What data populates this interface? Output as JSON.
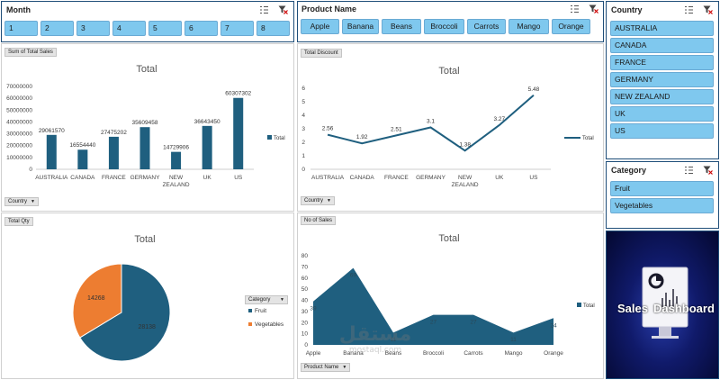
{
  "month_slicer": {
    "title": "Month",
    "items": [
      "1",
      "2",
      "3",
      "4",
      "5",
      "6",
      "7",
      "8"
    ]
  },
  "product_slicer": {
    "title": "Product Name",
    "items": [
      "Apple",
      "Banana",
      "Beans",
      "Broccoli",
      "Carrots",
      "Mango",
      "Orange"
    ]
  },
  "country_slicer": {
    "title": "Country",
    "items": [
      "AUSTRALIA",
      "CANADA",
      "FRANCE",
      "GERMANY",
      "NEW ZEALAND",
      "UK",
      "US"
    ]
  },
  "category_slicer": {
    "title": "Category",
    "items": [
      "Fruit",
      "Vegetables"
    ]
  },
  "sales_chart": {
    "field_label": "Sum of Total Sales",
    "axis_button": "Country",
    "chart_data": {
      "type": "bar",
      "title": "Total",
      "categories": [
        "AUSTRALIA",
        "CANADA",
        "FRANCE",
        "GERMANY",
        "NEW ZEALAND",
        "UK",
        "US"
      ],
      "series": [
        {
          "name": "Total",
          "values": [
            29061570,
            16554440,
            27475202,
            35609458,
            14729906,
            36643450,
            60307302
          ]
        }
      ],
      "data_labels": [
        "29061570",
        "16554440",
        "27475202",
        "35609458",
        "14729906",
        "36643450",
        "60307302"
      ],
      "yticks": [
        "0",
        "10000000",
        "20000000",
        "30000000",
        "40000000",
        "50000000",
        "60000000",
        "70000000"
      ],
      "ylim": [
        0,
        70000000
      ],
      "legend": "right",
      "color": "#1f5f7f"
    }
  },
  "discount_chart": {
    "field_label": "Total Discount",
    "axis_button": "Country",
    "chart_data": {
      "type": "line",
      "title": "Total",
      "categories": [
        "AUSTRALIA",
        "CANADA",
        "FRANCE",
        "GERMANY",
        "NEW ZEALAND",
        "UK",
        "US"
      ],
      "series": [
        {
          "name": "Total",
          "values": [
            2.56,
            1.92,
            2.51,
            3.1,
            1.38,
            3.27,
            5.48
          ]
        }
      ],
      "data_labels": [
        "2.56",
        "1.92",
        "2.51",
        "3.1",
        "1.38",
        "3.27",
        "5.48"
      ],
      "yticks": [
        "0",
        "1",
        "2",
        "3",
        "4",
        "5",
        "6"
      ],
      "ylim": [
        0,
        6
      ],
      "legend": "right",
      "color": "#1f5f7f"
    }
  },
  "qty_chart": {
    "field_label": "Total Qty",
    "legend_button": "Category",
    "chart_data": {
      "type": "pie",
      "title": "Total",
      "categories": [
        "Fruit",
        "Vegetables"
      ],
      "values": [
        28138,
        14268
      ],
      "data_labels": [
        "28138",
        "14268"
      ],
      "colors": [
        "#1f5f7f",
        "#ed7d31"
      ],
      "legend": "right"
    }
  },
  "nsales_chart": {
    "field_label": "No of Sales",
    "axis_button": "Product Name",
    "chart_data": {
      "type": "area",
      "title": "Total",
      "categories": [
        "Apple",
        "Banana",
        "Beans",
        "Broccoli",
        "Carrots",
        "Mango",
        "Orange"
      ],
      "series": [
        {
          "name": "Total",
          "values": [
            39,
            69,
            11,
            27,
            27,
            11,
            24
          ]
        }
      ],
      "data_labels": [
        "39",
        "69",
        "11",
        "27",
        "27",
        "11",
        "24"
      ],
      "yticks": [
        "0",
        "10",
        "20",
        "30",
        "40",
        "50",
        "60",
        "70",
        "80"
      ],
      "ylim": [
        0,
        80
      ],
      "legend": "right",
      "color": "#1f5f7f"
    }
  },
  "logo": {
    "line1": "Sales",
    "line2": "Dashboard"
  },
  "watermark": {
    "text": "مستقل",
    "sub": "mostaql.com"
  },
  "colors": {
    "accent": "#1f5f7f",
    "orange": "#ed7d31",
    "chip": "#7fc8ee",
    "border": "#1f4e79"
  },
  "icons": [
    "multi-select-icon",
    "clear-filter-icon"
  ]
}
